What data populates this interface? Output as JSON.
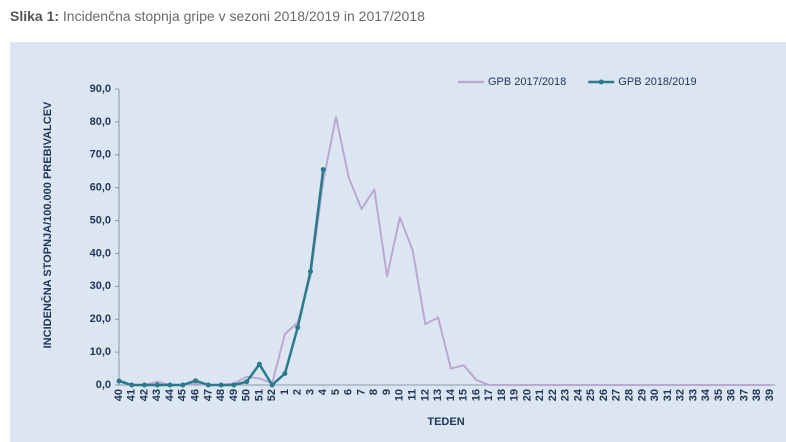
{
  "chart_data": {
    "type": "line",
    "figure_label": "Slika 1:",
    "title": "Incidenčna stopnja gripe v sezoni 2018/2019 in 2017/2018",
    "x_label": "TEDEN",
    "y_label": "INCIDENČNA STOPNJA/100.000 PREBIVALCEV",
    "categories": [
      "40",
      "41",
      "42",
      "43",
      "44",
      "45",
      "46",
      "47",
      "48",
      "49",
      "50",
      "51",
      "52",
      "1",
      "2",
      "3",
      "4",
      "5",
      "6",
      "7",
      "8",
      "9",
      "10",
      "11",
      "12",
      "13",
      "14",
      "15",
      "16",
      "17",
      "18",
      "19",
      "20",
      "21",
      "22",
      "23",
      "24",
      "25",
      "26",
      "27",
      "28",
      "29",
      "30",
      "31",
      "32",
      "33",
      "34",
      "35",
      "36",
      "37",
      "38",
      "39"
    ],
    "series": [
      {
        "name": "GPB 2017/2018",
        "color": "#bba8d0",
        "markers": false,
        "values": [
          1.5,
          0,
          0,
          1,
          0,
          0,
          0.5,
          0,
          0,
          0.5,
          2.5,
          2,
          0.5,
          15.5,
          19,
          33,
          62,
          81.5,
          63,
          53.5,
          59.5,
          33,
          51,
          41,
          18.5,
          20.5,
          5,
          6,
          1.5,
          0,
          0,
          0,
          0,
          0,
          0,
          0,
          0,
          0,
          0,
          0,
          0,
          0,
          0,
          0,
          0,
          0,
          0,
          0,
          0,
          0,
          0,
          0
        ]
      },
      {
        "name": "GPB 2018/2019",
        "color": "#2b7a8c",
        "markers": true,
        "values": [
          1.2,
          0,
          0,
          0,
          0,
          0,
          1.3,
          0,
          0,
          0,
          1,
          6.3,
          0,
          3.5,
          17.5,
          34.5,
          65.5,
          null,
          null,
          null,
          null,
          null,
          null,
          null,
          null,
          null,
          null,
          null,
          null,
          null,
          null,
          null,
          null,
          null,
          null,
          null,
          null,
          null,
          null,
          null,
          null,
          null,
          null,
          null,
          null,
          null,
          null,
          null,
          null,
          null,
          null,
          null
        ]
      }
    ],
    "ylim": [
      0,
      90
    ],
    "yticks": [
      {
        "value": 0,
        "label": "0,0"
      },
      {
        "value": 10,
        "label": "10,0"
      },
      {
        "value": 20,
        "label": "20,0"
      },
      {
        "value": 30,
        "label": "30,0"
      },
      {
        "value": 40,
        "label": "40,0"
      },
      {
        "value": 50,
        "label": "50,0"
      },
      {
        "value": 60,
        "label": "60,0"
      },
      {
        "value": 70,
        "label": "70,0"
      },
      {
        "value": 80,
        "label": "80,0"
      },
      {
        "value": 90,
        "label": "90,0"
      }
    ],
    "legend": "top-right",
    "grid": false
  }
}
